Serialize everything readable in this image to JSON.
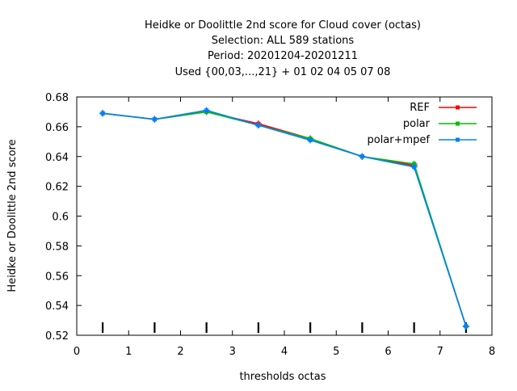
{
  "chart_data": {
    "type": "line",
    "title_lines": [
      "Heidke or Doolittle 2nd score  for Cloud cover (octas)",
      "Selection: ALL     589 stations",
      "Period: 20201204-20201211",
      "Used {00,03,...,21} + 01 02 04 05 07 08"
    ],
    "xlabel": "thresholds octas",
    "ylabel": "Heidke or Doolittle 2nd score",
    "xlim": [
      0,
      8
    ],
    "ylim": [
      0.52,
      0.68
    ],
    "xticks": [
      "0",
      "1",
      "2",
      "3",
      "4",
      "5",
      "6",
      "7",
      "8"
    ],
    "yticks": [
      "0.52",
      "0.54",
      "0.56",
      "0.58",
      "0.6",
      "0.62",
      "0.64",
      "0.66",
      "0.68"
    ],
    "x": [
      0.5,
      1.5,
      2.5,
      3.5,
      4.5,
      5.5,
      6.5,
      7.5
    ],
    "series": [
      {
        "name": "REF",
        "color": "#ff0000",
        "values": [
          0.669,
          0.665,
          0.67,
          0.662,
          0.652,
          0.64,
          0.634,
          0.526
        ]
      },
      {
        "name": "polar",
        "color": "#00c000",
        "values": [
          0.669,
          0.665,
          0.67,
          0.661,
          0.652,
          0.64,
          0.635,
          0.526
        ]
      },
      {
        "name": "polar+mpef",
        "color": "#0080ff",
        "values": [
          0.669,
          0.665,
          0.671,
          0.661,
          0.651,
          0.64,
          0.633,
          0.526
        ]
      }
    ],
    "legend": "top-right",
    "grid": false
  }
}
